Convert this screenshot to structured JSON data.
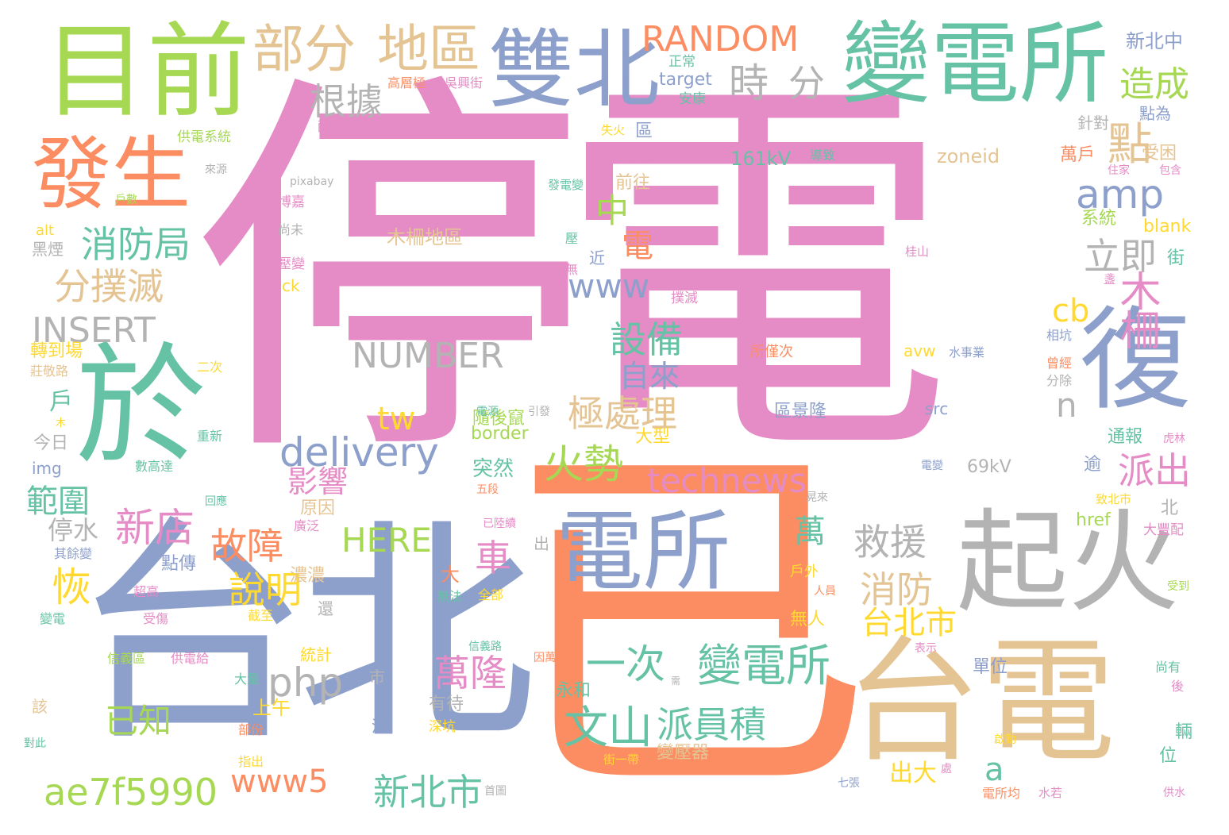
{
  "palette": {
    "pink": "#e58bc6",
    "orange": "#fc8d62",
    "blue": "#8d9fcb",
    "green": "#66c2a5",
    "lime": "#a6d854",
    "yellow": "#ffd92f",
    "tan": "#e5c494",
    "gray": "#b3b3b3"
  },
  "words": [
    {
      "text": "停電",
      "color": "pink"
    },
    {
      "text": "已",
      "color": "orange"
    },
    {
      "text": "台北",
      "color": "blue"
    },
    {
      "text": "於",
      "color": "green"
    },
    {
      "text": "目前",
      "color": "lime"
    },
    {
      "text": "發生",
      "color": "orange"
    },
    {
      "text": "雙北",
      "color": "blue"
    },
    {
      "text": "變電所",
      "color": "green"
    },
    {
      "text": "復",
      "color": "blue"
    },
    {
      "text": "起火",
      "color": "gray"
    },
    {
      "text": "台電",
      "color": "tan"
    },
    {
      "text": "電所",
      "color": "blue"
    },
    {
      "text": "部分",
      "color": "tan"
    },
    {
      "text": "地區",
      "color": "tan"
    },
    {
      "text": "RANDOM",
      "color": "orange"
    },
    {
      "text": "時",
      "color": "gray"
    },
    {
      "text": "分",
      "color": "gray"
    },
    {
      "text": "根據",
      "color": "gray"
    },
    {
      "text": "造成",
      "color": "lime"
    },
    {
      "text": "點",
      "color": "tan"
    },
    {
      "text": "amp",
      "color": "blue"
    },
    {
      "text": "消防局",
      "color": "green"
    },
    {
      "text": "中",
      "color": "lime"
    },
    {
      "text": "立即",
      "color": "gray"
    },
    {
      "text": "木柵",
      "color": "pink"
    },
    {
      "text": "分撲滅",
      "color": "tan"
    },
    {
      "text": "電",
      "color": "orange"
    },
    {
      "text": "www",
      "color": "blue"
    },
    {
      "text": "INSERT",
      "color": "gray"
    },
    {
      "text": "NUMBER",
      "color": "gray"
    },
    {
      "text": "木柵地區",
      "color": "tan"
    },
    {
      "text": "cb",
      "color": "yellow"
    },
    {
      "text": "設備",
      "color": "green"
    },
    {
      "text": "自來",
      "color": "blue"
    },
    {
      "text": "n",
      "color": "gray"
    },
    {
      "text": "極處理",
      "color": "tan"
    },
    {
      "text": "tw",
      "color": "yellow"
    },
    {
      "text": "delivery",
      "color": "blue"
    },
    {
      "text": "火勢",
      "color": "lime"
    },
    {
      "text": "派出",
      "color": "pink"
    },
    {
      "text": "technews",
      "color": "pink"
    },
    {
      "text": "新店",
      "color": "pink"
    },
    {
      "text": "影響",
      "color": "pink"
    },
    {
      "text": "故障",
      "color": "orange"
    },
    {
      "text": "HERE",
      "color": "lime"
    },
    {
      "text": "車",
      "color": "pink"
    },
    {
      "text": "恢",
      "color": "yellow"
    },
    {
      "text": "說明",
      "color": "yellow"
    },
    {
      "text": "救援",
      "color": "gray"
    },
    {
      "text": "消防",
      "color": "tan"
    },
    {
      "text": "萬",
      "color": "green"
    },
    {
      "text": "php",
      "color": "gray"
    },
    {
      "text": "一次",
      "color": "green"
    },
    {
      "text": "變電所",
      "color": "green"
    },
    {
      "text": "萬隆",
      "color": "pink"
    },
    {
      "text": "台北市",
      "color": "yellow"
    },
    {
      "text": "已知",
      "color": "lime"
    },
    {
      "text": "文山",
      "color": "green"
    },
    {
      "text": "派員積",
      "color": "green"
    },
    {
      "text": "a",
      "color": "green"
    },
    {
      "text": "ae7f5990",
      "color": "lime"
    },
    {
      "text": "www5",
      "color": "orange"
    },
    {
      "text": "新北市",
      "color": "green"
    },
    {
      "text": "出大",
      "color": "yellow"
    },
    {
      "text": "範圍",
      "color": "green"
    },
    {
      "text": "停水",
      "color": "gray"
    },
    {
      "text": "161kV",
      "color": "green"
    },
    {
      "text": "zoneid",
      "color": "tan"
    },
    {
      "text": "target",
      "color": "blue"
    },
    {
      "text": "新北中",
      "color": "blue"
    },
    {
      "text": "前往",
      "color": "tan"
    },
    {
      "text": "萬戶",
      "color": "orange"
    },
    {
      "text": "受困",
      "color": "tan"
    },
    {
      "text": "系統",
      "color": "lime"
    },
    {
      "text": "blank",
      "color": "yellow"
    },
    {
      "text": "街",
      "color": "green"
    },
    {
      "text": "近",
      "color": "blue"
    },
    {
      "text": "區景隆",
      "color": "blue"
    },
    {
      "text": "所僅次",
      "color": "orange"
    },
    {
      "text": "avw",
      "color": "yellow"
    },
    {
      "text": "水事業",
      "color": "blue"
    },
    {
      "text": "src",
      "color": "blue"
    },
    {
      "text": "69kV",
      "color": "gray"
    },
    {
      "text": "border",
      "color": "lime"
    },
    {
      "text": "隨後竄",
      "color": "lime"
    },
    {
      "text": "突然",
      "color": "green"
    },
    {
      "text": "原因",
      "color": "tan"
    },
    {
      "text": "大型",
      "color": "yellow"
    },
    {
      "text": "點傳",
      "color": "blue"
    },
    {
      "text": "濃濃",
      "color": "tan"
    },
    {
      "text": "大",
      "color": "orange"
    },
    {
      "text": "上午",
      "color": "yellow"
    },
    {
      "text": "永和",
      "color": "green"
    },
    {
      "text": "有待",
      "color": "gray"
    },
    {
      "text": "變壓器",
      "color": "tan"
    },
    {
      "text": "無人",
      "color": "yellow"
    },
    {
      "text": "通報",
      "color": "green"
    },
    {
      "text": "逾",
      "color": "blue"
    },
    {
      "text": "北",
      "color": "gray"
    },
    {
      "text": "戶",
      "color": "green"
    },
    {
      "text": "href",
      "color": "lime"
    },
    {
      "text": "單位",
      "color": "blue"
    },
    {
      "text": "位",
      "color": "green"
    },
    {
      "text": "轉到場",
      "color": "yellow"
    },
    {
      "text": "莊敬路",
      "color": "tan"
    },
    {
      "text": "今日",
      "color": "gray"
    },
    {
      "text": "img",
      "color": "blue"
    },
    {
      "text": "黑煙",
      "color": "gray"
    },
    {
      "text": "alt",
      "color": "yellow"
    },
    {
      "text": "正常",
      "color": "green"
    },
    {
      "text": "安康",
      "color": "green"
    },
    {
      "text": "高層極",
      "color": "orange"
    },
    {
      "text": "吳興街",
      "color": "pink"
    },
    {
      "text": "供電系統",
      "color": "lime"
    },
    {
      "text": "配電變",
      "color": "pink"
    },
    {
      "text": "供電",
      "color": "pink"
    },
    {
      "text": "失火",
      "color": "yellow"
    },
    {
      "text": "停電戶",
      "color": "pink"
    },
    {
      "text": "導致",
      "color": "green"
    },
    {
      "text": "點為",
      "color": "blue"
    },
    {
      "text": "針對",
      "color": "gray"
    },
    {
      "text": "住家",
      "color": "pink"
    },
    {
      "text": "包含",
      "color": "pink"
    },
    {
      "text": "pixabay",
      "color": "gray"
    },
    {
      "text": "戶數",
      "color": "lime"
    },
    {
      "text": "博嘉",
      "color": "pink"
    },
    {
      "text": "尚未",
      "color": "gray"
    },
    {
      "text": "發電變",
      "color": "green"
    },
    {
      "text": "來源",
      "color": "gray"
    },
    {
      "text": "桂山",
      "color": "pink"
    },
    {
      "text": "壓變",
      "color": "pink"
    },
    {
      "text": "ck",
      "color": "yellow"
    },
    {
      "text": "撲滅",
      "color": "pink"
    },
    {
      "text": "相坑",
      "color": "blue"
    },
    {
      "text": "曾經",
      "color": "orange"
    },
    {
      "text": "分除",
      "color": "gray"
    },
    {
      "text": "二次",
      "color": "yellow"
    },
    {
      "text": "重新",
      "color": "green"
    },
    {
      "text": "數高達",
      "color": "green"
    },
    {
      "text": "五段",
      "color": "orange"
    },
    {
      "text": "電源",
      "color": "green"
    },
    {
      "text": "引發",
      "color": "gray"
    },
    {
      "text": "電變",
      "color": "blue"
    },
    {
      "text": "虎林",
      "color": "pink"
    },
    {
      "text": "晃來",
      "color": "gray"
    },
    {
      "text": "致北市",
      "color": "yellow"
    },
    {
      "text": "大豐配",
      "color": "pink"
    },
    {
      "text": "回應",
      "color": "green"
    },
    {
      "text": "廣泛",
      "color": "pink"
    },
    {
      "text": "已陸續",
      "color": "pink"
    },
    {
      "text": "其餘變",
      "color": "blue"
    },
    {
      "text": "超高",
      "color": "pink"
    },
    {
      "text": "變電",
      "color": "green"
    },
    {
      "text": "受傷",
      "color": "pink"
    },
    {
      "text": "截至",
      "color": "yellow"
    },
    {
      "text": "無法",
      "color": "green"
    },
    {
      "text": "全部",
      "color": "yellow"
    },
    {
      "text": "還",
      "color": "gray"
    },
    {
      "text": "信義區",
      "color": "lime"
    },
    {
      "text": "供電給",
      "color": "pink"
    },
    {
      "text": "統計",
      "color": "yellow"
    },
    {
      "text": "信義路",
      "color": "green"
    },
    {
      "text": "因萬隆",
      "color": "orange"
    },
    {
      "text": "表示",
      "color": "pink"
    },
    {
      "text": "戶外",
      "color": "yellow"
    },
    {
      "text": "人員",
      "color": "orange"
    },
    {
      "text": "尚有",
      "color": "green"
    },
    {
      "text": "受到",
      "color": "lime"
    },
    {
      "text": "後",
      "color": "pink"
    },
    {
      "text": "輛",
      "color": "green"
    },
    {
      "text": "啟動",
      "color": "yellow"
    },
    {
      "text": "供水",
      "color": "pink"
    },
    {
      "text": "水若",
      "color": "pink"
    },
    {
      "text": "電所均",
      "color": "orange"
    },
    {
      "text": "七張",
      "color": "blue"
    },
    {
      "text": "處",
      "color": "pink"
    },
    {
      "text": "街一帶",
      "color": "yellow"
    },
    {
      "text": "首圖",
      "color": "gray"
    },
    {
      "text": "指出",
      "color": "yellow"
    },
    {
      "text": "部份",
      "color": "orange"
    },
    {
      "text": "大量",
      "color": "green"
    },
    {
      "text": "深坑",
      "color": "yellow"
    },
    {
      "text": "清",
      "color": "blue"
    },
    {
      "text": "市",
      "color": "gray"
    },
    {
      "text": "出",
      "color": "gray"
    },
    {
      "text": "該",
      "color": "tan"
    },
    {
      "text": "對此",
      "color": "green"
    },
    {
      "text": "需",
      "color": "gray"
    },
    {
      "text": "木",
      "color": "yellow"
    },
    {
      "text": "無",
      "color": "pink"
    },
    {
      "text": "區",
      "color": "blue"
    },
    {
      "text": "盞",
      "color": "pink"
    },
    {
      "text": "壓",
      "color": "green"
    }
  ]
}
